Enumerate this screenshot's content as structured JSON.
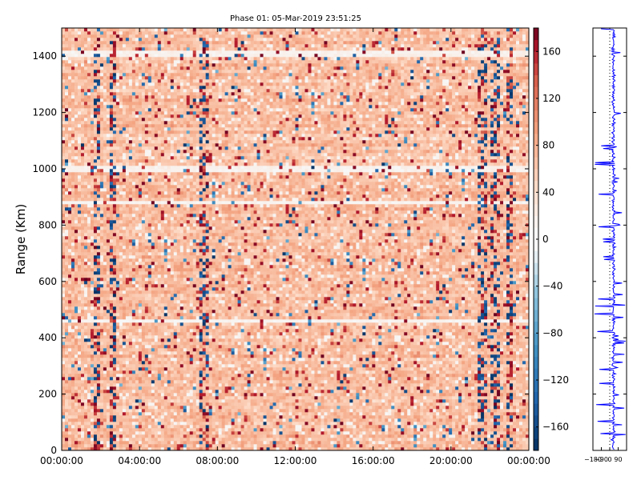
{
  "chart_data": {
    "type": "heatmap",
    "title": "Phase 01: 05-Mar-2019 23:51:25",
    "ylabel": "Range (Km)",
    "xlabel": "",
    "x_tick_labels": [
      "00:00:00",
      "04:00:00",
      "08:00:00",
      "12:00:00",
      "16:00:00",
      "20:00:00",
      "00:00:00"
    ],
    "x_range_hours": [
      0,
      24
    ],
    "y_ticks": [
      0,
      200,
      400,
      600,
      800,
      1000,
      1200,
      1400
    ],
    "ylim": [
      0,
      1500
    ],
    "colorbar": {
      "colormap": "diverging red-white-blue",
      "clim": [
        -180,
        180
      ],
      "ticks": [
        160,
        120,
        80,
        40,
        0,
        -40,
        -80,
        -120,
        -160
      ],
      "tick_labels": [
        "160",
        "120",
        "80",
        "40",
        "0",
        "−40",
        "−80",
        "−120",
        "−160"
      ]
    },
    "value_summary": {
      "typical_phase_deg": [
        40,
        120
      ],
      "dominant_range": "positive (light to medium red)",
      "vertical_streaks_hours": [
        1.8,
        2.6,
        7.3,
        21.6,
        22.3,
        23.0
      ],
      "horizontal_white_bands_km": [
        460,
        880,
        1000,
        1410
      ]
    },
    "profile_panel": {
      "type": "line",
      "series_color": "#0000ff",
      "x_tick_labels": [
        "−180",
        "−90",
        "0",
        "90"
      ],
      "xlim": [
        -180,
        180
      ],
      "ylim": [
        0,
        1500
      ]
    }
  },
  "colors": {
    "series_line": "#0000ff",
    "deep_red": "#67001f",
    "mid_red": "#d6604d",
    "light_red": "#f4a582",
    "white": "#f7f7f7",
    "light_blue": "#92c5de",
    "deep_blue": "#053061"
  }
}
